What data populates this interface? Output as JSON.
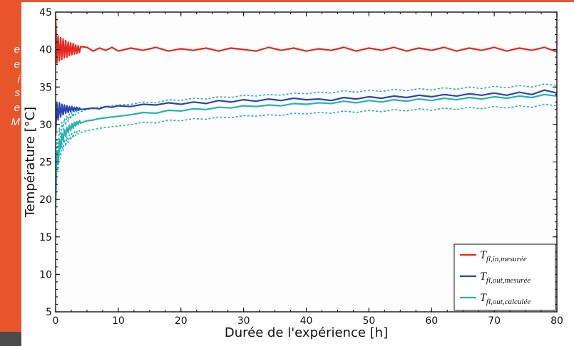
{
  "sidebar": {
    "color": "#e9552b",
    "fragments": [
      "e",
      "e",
      "i",
      "s",
      "e",
      "M"
    ]
  },
  "chart_data": {
    "type": "line",
    "xlabel": "Durée de l'expérience [h]",
    "ylabel": "Température [°C]",
    "xlim": [
      0,
      80
    ],
    "ylim": [
      5,
      45
    ],
    "xticks": [
      "0",
      "10",
      "20",
      "30",
      "40",
      "50",
      "60",
      "70",
      "80"
    ],
    "yticks": [
      "5",
      "10",
      "15",
      "20",
      "25",
      "30",
      "35",
      "40",
      "45"
    ],
    "grid": false,
    "legend_position": "lower right",
    "x": [
      0,
      0.2,
      0.4,
      0.6,
      0.8,
      1,
      1.2,
      1.4,
      1.6,
      1.8,
      2,
      2.2,
      2.4,
      2.6,
      2.8,
      3,
      3.2,
      3.4,
      3.6,
      3.8,
      4,
      5,
      6,
      7,
      8,
      9,
      10,
      12,
      14,
      16,
      18,
      20,
      22,
      24,
      26,
      28,
      30,
      32,
      34,
      36,
      38,
      40,
      42,
      44,
      46,
      48,
      50,
      52,
      54,
      56,
      58,
      60,
      62,
      64,
      66,
      68,
      70,
      72,
      74,
      76,
      78,
      80
    ],
    "series": [
      {
        "name": {
          "main": "T",
          "sub": "fl,in,mesurée"
        },
        "color": "#e6291f",
        "style": "solid",
        "values": [
          44.5,
          38.2,
          41.8,
          38.5,
          41.6,
          38.7,
          41.4,
          38.9,
          41.2,
          39.0,
          41.0,
          39.2,
          40.9,
          39.3,
          40.8,
          39.4,
          40.6,
          39.5,
          40.5,
          39.6,
          40.4,
          40.3,
          39.8,
          40.2,
          39.9,
          40.3,
          39.8,
          40.2,
          39.9,
          40.3,
          39.8,
          40.1,
          39.9,
          40.2,
          39.8,
          40.2,
          40.0,
          39.8,
          40.3,
          39.9,
          40.2,
          39.8,
          40.1,
          39.9,
          40.3,
          39.8,
          40.2,
          39.9,
          40.3,
          39.8,
          40.2,
          39.9,
          40.3,
          39.8,
          40.2,
          39.9,
          40.3,
          39.8,
          40.2,
          39.9,
          40.3,
          39.7
        ]
      },
      {
        "name": {
          "main": "T",
          "sub": "fl,out,mesurée"
        },
        "color": "#2a45b3",
        "style": "solid",
        "values": [
          28.5,
          32.8,
          30.6,
          32.9,
          31.0,
          32.7,
          31.3,
          32.6,
          31.5,
          32.5,
          31.6,
          32.4,
          31.7,
          32.4,
          31.8,
          32.3,
          31.9,
          32.3,
          31.9,
          32.2,
          32.0,
          32.1,
          32.2,
          32.1,
          32.4,
          32.3,
          32.5,
          32.4,
          32.7,
          32.6,
          32.9,
          32.7,
          33.0,
          32.8,
          33.2,
          33.0,
          33.3,
          33.1,
          33.4,
          33.2,
          33.5,
          33.3,
          33.4,
          33.2,
          33.6,
          33.4,
          33.7,
          33.5,
          33.8,
          33.6,
          33.9,
          33.7,
          34.0,
          33.8,
          34.1,
          33.9,
          34.2,
          33.9,
          34.3,
          34.0,
          34.6,
          34.2
        ]
      },
      {
        "name": {
          "main": "T",
          "sub": "fl,out,calculée"
        },
        "color": "#22b4b0",
        "style": "solid",
        "values": [
          19.0,
          26.5,
          25.0,
          28.0,
          26.8,
          28.8,
          27.8,
          29.3,
          28.4,
          29.6,
          28.9,
          29.9,
          29.2,
          30.1,
          29.5,
          30.3,
          29.8,
          30.4,
          30.0,
          30.5,
          30.2,
          30.5,
          30.6,
          30.8,
          30.9,
          31.0,
          31.1,
          31.3,
          31.6,
          31.5,
          31.9,
          31.8,
          32.1,
          32.0,
          32.3,
          32.2,
          32.5,
          32.4,
          32.6,
          32.5,
          32.8,
          32.7,
          32.9,
          32.8,
          33.1,
          32.9,
          33.2,
          33.0,
          33.3,
          33.1,
          33.4,
          33.2,
          33.5,
          33.3,
          33.6,
          33.4,
          33.7,
          33.5,
          33.8,
          33.6,
          34.0,
          33.8
        ]
      },
      {
        "color": "#22b4b0",
        "style": "dashed",
        "values": [
          20.5,
          28.0,
          26.5,
          29.5,
          28.3,
          30.3,
          29.3,
          30.8,
          29.9,
          31.1,
          30.4,
          31.4,
          30.7,
          31.6,
          31.0,
          31.8,
          31.3,
          31.9,
          31.5,
          32.0,
          31.7,
          32.0,
          32.1,
          32.3,
          32.4,
          32.5,
          32.6,
          32.7,
          33.0,
          32.9,
          33.3,
          33.2,
          33.5,
          33.4,
          33.7,
          33.6,
          33.9,
          33.8,
          34.0,
          33.9,
          34.2,
          34.1,
          34.3,
          34.2,
          34.5,
          34.3,
          34.6,
          34.4,
          34.7,
          34.5,
          34.8,
          34.6,
          34.9,
          34.7,
          35.0,
          34.8,
          35.1,
          34.9,
          35.2,
          35.0,
          35.4,
          35.2
        ]
      },
      {
        "color": "#22b4b0",
        "style": "dashed",
        "values": [
          17.7,
          25.2,
          23.7,
          26.7,
          25.5,
          27.5,
          26.5,
          28.0,
          27.1,
          28.3,
          27.6,
          28.6,
          27.9,
          28.8,
          28.2,
          29.0,
          28.5,
          29.1,
          28.7,
          29.2,
          28.9,
          29.2,
          29.3,
          29.5,
          29.6,
          29.7,
          29.8,
          30.0,
          30.3,
          30.2,
          30.6,
          30.5,
          30.8,
          30.7,
          31.0,
          30.9,
          31.2,
          31.1,
          31.3,
          31.2,
          31.5,
          31.4,
          31.6,
          31.5,
          31.8,
          31.6,
          31.9,
          31.7,
          32.0,
          31.8,
          32.1,
          31.9,
          32.2,
          32.0,
          32.3,
          32.1,
          32.4,
          32.2,
          32.5,
          32.3,
          32.7,
          32.5
        ]
      }
    ]
  }
}
